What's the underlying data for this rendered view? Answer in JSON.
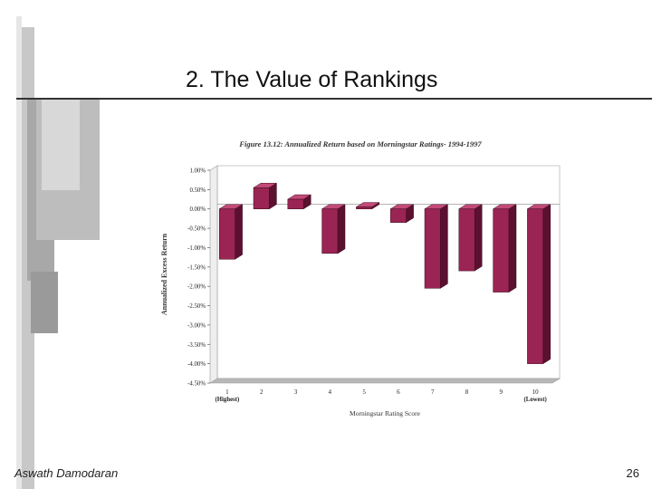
{
  "slide": {
    "title": "2. The Value of Rankings",
    "author": "Aswath Damodaran",
    "page_number": "26"
  },
  "theme": {
    "bar_front": "#9a2453",
    "bar_side": "#5c1030",
    "bar_top": "#c24a78",
    "floor": "#b8b8b8",
    "deco_gray_dark": "#9c9c9c",
    "deco_gray_light": "#d0d0d0"
  },
  "chart_data": {
    "type": "bar",
    "title": "Figure 13.12: Annualized Return based on Morningstar Ratings- 1994-1997",
    "xlabel": "Morningstar Rating Score",
    "ylabel": "Annualized Excess Return",
    "ylim": [
      -4.5,
      1.0
    ],
    "yticks": [
      1.0,
      0.5,
      0.0,
      -0.5,
      -1.0,
      -1.5,
      -2.0,
      -2.5,
      -3.0,
      -3.5,
      -4.0,
      -4.5
    ],
    "ytick_labels": [
      "1.00%",
      "0.50%",
      "0.00%",
      "-0.50%",
      "-1.00%",
      "-1.50%",
      "-2.00%",
      "-2.50%",
      "-3.00%",
      "-3.50%",
      "-4.00%",
      "-4.50%"
    ],
    "categories": [
      "1",
      "2",
      "3",
      "4",
      "5",
      "6",
      "7",
      "8",
      "9",
      "10"
    ],
    "category_sublabels": [
      "(Highest)",
      "",
      "",
      "",
      "",
      "",
      "",
      "",
      "",
      "(Lowest)"
    ],
    "values": [
      -1.3,
      0.55,
      0.25,
      -1.15,
      0.05,
      -0.35,
      -2.05,
      -1.6,
      -2.15,
      -4.0
    ],
    "grid": false,
    "legend": "none"
  }
}
